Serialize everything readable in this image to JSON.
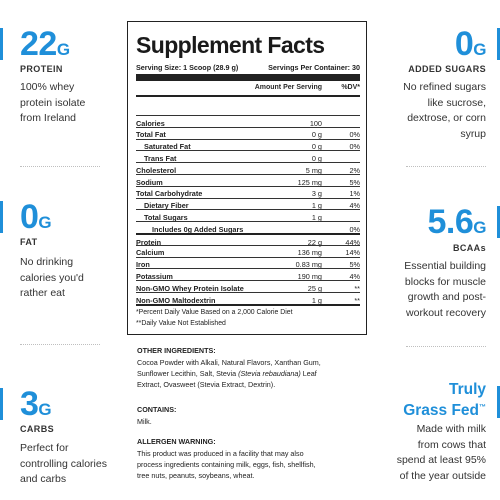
{
  "colors": {
    "accent": "#1f8fd9"
  },
  "left_features": [
    {
      "value": "22",
      "unit": "G",
      "label": "PROTEIN",
      "desc": [
        "100% whey",
        "protein isolate",
        "from Ireland"
      ]
    },
    {
      "value": "0",
      "unit": "G",
      "label": "FAT",
      "desc": [
        "No drinking",
        "calories you'd",
        "rather eat"
      ]
    },
    {
      "value": "3",
      "unit": "G",
      "label": "CARBS",
      "desc": [
        "Perfect for",
        "controlling calories",
        "and carbs"
      ]
    }
  ],
  "right_features": [
    {
      "value": "0",
      "unit": "G",
      "label": "ADDED SUGARS",
      "desc": [
        "No refined sugars",
        "like sucrose,",
        "dextrose, or corn",
        "syrup"
      ]
    },
    {
      "value": "5.6",
      "unit": "G",
      "label": "BCAAs",
      "desc": [
        "Essential building",
        "blocks for muscle",
        "growth and post-",
        "workout recovery"
      ]
    },
    {
      "title_line1": "Truly",
      "title_line2": "Grass Fed",
      "tm": "™",
      "desc": [
        "Made with milk",
        "from cows that",
        "spend at least 95%",
        "of the year outside"
      ]
    }
  ],
  "panel": {
    "title": "Supplement Facts",
    "serving_size": "Serving Size: 1 Scoop (28.9 g)",
    "servings_per_container": "Servings Per Container: 30",
    "col_amount": "Amount Per Serving",
    "col_dv": "%DV*",
    "rows": [
      {
        "name": "Calories",
        "amount": "100",
        "dv": "",
        "indent": 0
      },
      {
        "name": "Total Fat",
        "amount": "0 g",
        "dv": "0%",
        "indent": 0
      },
      {
        "name": "Saturated Fat",
        "amount": "0 g",
        "dv": "0%",
        "indent": 1
      },
      {
        "name": "Trans Fat",
        "amount": "0 g",
        "dv": "",
        "indent": 1
      },
      {
        "name": "Cholesterol",
        "amount": "5 mg",
        "dv": "2%",
        "indent": 0
      },
      {
        "name": "Sodium",
        "amount": "125 mg",
        "dv": "5%",
        "indent": 0
      },
      {
        "name": "Total Carbohydrate",
        "amount": "3 g",
        "dv": "1%",
        "indent": 0
      },
      {
        "name": "Dietary Fiber",
        "amount": "1 g",
        "dv": "4%",
        "indent": 1
      },
      {
        "name": "Total Sugars",
        "amount": "1 g",
        "dv": "",
        "indent": 1
      },
      {
        "name": "Includes 0g Added Sugars",
        "amount": "",
        "dv": "0%",
        "indent": 2
      },
      {
        "name": "Protein",
        "amount": "22 g",
        "dv": "44%",
        "indent": 0,
        "thick": true
      },
      {
        "name": "Calcium",
        "amount": "136 mg",
        "dv": "14%",
        "indent": 0
      },
      {
        "name": "Iron",
        "amount": "0.83 mg",
        "dv": "5%",
        "indent": 0
      },
      {
        "name": "Potassium",
        "amount": "190 mg",
        "dv": "4%",
        "indent": 0
      },
      {
        "name": "Non-GMO Whey Protein Isolate",
        "amount": "25 g",
        "dv": "**",
        "indent": 0
      },
      {
        "name": "Non-GMO Maltodextrin",
        "amount": "1 g",
        "dv": "**",
        "indent": 0
      }
    ],
    "footnote1": "*Percent Daily Value Based on a 2,000 Calorie Diet",
    "footnote2": "**Daily Value Not Established"
  },
  "other_ingredients": {
    "heading": "OTHER INGREDIENTS:",
    "line1": "Cocoa Powder with Alkali, Natural Flavors, Xanthan Gum,",
    "line2a": "Sunflower Lecithin, Salt, Stevia ",
    "line2b": "(Stevia rebaudiana)",
    "line2c": " Leaf",
    "line3": "Extract, Ovasweet (Stevia Extract, Dextrin)."
  },
  "contains": {
    "heading": "CONTAINS:",
    "text": "Milk."
  },
  "allergen": {
    "heading": "ALLERGEN WARNING:",
    "lines": [
      "This product was produced in a facility that may also",
      "process ingredients containing milk, eggs, fish, shellfish,",
      "tree nuts, peanuts, soybeans, wheat."
    ]
  }
}
